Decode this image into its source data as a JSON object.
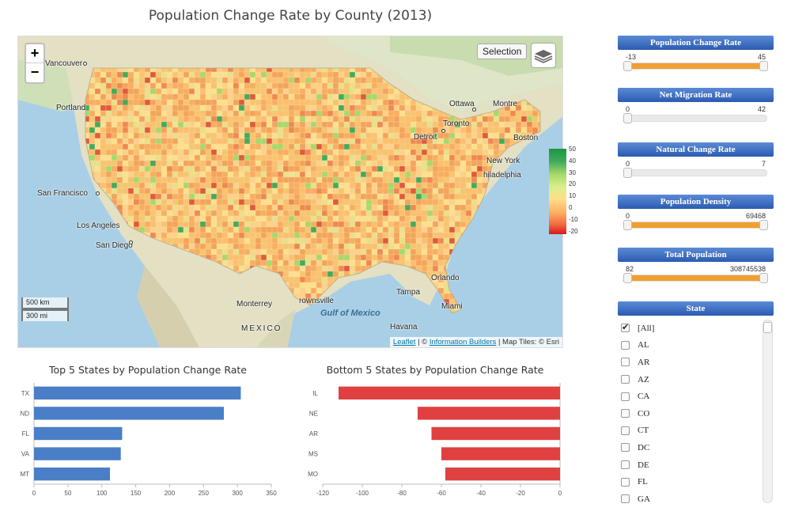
{
  "title": "Population Change Rate by County (2013)",
  "map": {
    "zoom_in": "+",
    "zoom_out": "−",
    "selection_label": "Selection",
    "layers_icon": "layers-icon",
    "scale_km": "500 km",
    "scale_mi": "300 mi",
    "attribution_leaflet": "Leaflet",
    "attribution_sep1": " | © ",
    "attribution_ib": "Information Builders",
    "attribution_tail": " | Map Tiles: © Esri",
    "labels": [
      {
        "name": "vancouver",
        "text": "Vancouver"
      },
      {
        "name": "portland",
        "text": "Portland"
      },
      {
        "name": "san-francisco",
        "text": "San Francisco"
      },
      {
        "name": "los-angeles",
        "text": "Los Angeles"
      },
      {
        "name": "san-diego",
        "text": "San Diego"
      },
      {
        "name": "ottawa",
        "text": "Ottawa"
      },
      {
        "name": "montreal",
        "text": "Montre"
      },
      {
        "name": "toronto",
        "text": "Toronto"
      },
      {
        "name": "detroit",
        "text": "Detroit"
      },
      {
        "name": "boston",
        "text": "Boston"
      },
      {
        "name": "new-york",
        "text": "New York"
      },
      {
        "name": "philadelphia",
        "text": "hiladelphia"
      },
      {
        "name": "orlando",
        "text": "Orlando"
      },
      {
        "name": "tampa",
        "text": "Tampa"
      },
      {
        "name": "miami",
        "text": "Miami"
      },
      {
        "name": "havana",
        "text": "Havana"
      },
      {
        "name": "monterrey",
        "text": "Monterrey"
      },
      {
        "name": "brownsville",
        "text": "rownsville"
      },
      {
        "name": "mexico",
        "text": "MEXICO"
      },
      {
        "name": "gulf",
        "text": "Gulf of Mexico"
      }
    ],
    "legend_ticks": [
      "50",
      "40",
      "30",
      "20",
      "10",
      "0",
      "-10",
      "-20"
    ],
    "colors": {
      "ocean": "#a9cfe6",
      "land": "#dfe6c8",
      "high": "#1a9641",
      "low": "#d7191c",
      "mid": "#fdae61"
    }
  },
  "top_chart": {
    "title": "Top 5 States by Population Change Rate",
    "color": "#4a7ec7"
  },
  "bottom_chart": {
    "title": "Bottom 5 States by Population Change Rate",
    "color": "#e04040"
  },
  "chart_data": [
    {
      "type": "bar",
      "orientation": "horizontal",
      "title": "Top 5 States by Population Change Rate",
      "categories": [
        "TX",
        "ND",
        "FL",
        "VA",
        "MT"
      ],
      "values": [
        305,
        280,
        130,
        128,
        112
      ],
      "xlim": [
        0,
        350
      ],
      "xticks": [
        "0",
        "50",
        "100",
        "150",
        "200",
        "250",
        "300",
        "350"
      ],
      "xtick_values": [
        0,
        50,
        100,
        150,
        200,
        250,
        300,
        350
      ],
      "color": "#4a7ec7"
    },
    {
      "type": "bar",
      "orientation": "horizontal",
      "title": "Bottom 5 States by Population Change Rate",
      "categories": [
        "IL",
        "NE",
        "AR",
        "MS",
        "MO"
      ],
      "values": [
        -112,
        -72,
        -65,
        -60,
        -58
      ],
      "xlim": [
        -120,
        0
      ],
      "xticks": [
        "-120",
        "-100",
        "-80",
        "-60",
        "-40",
        "-20",
        "0"
      ],
      "xtick_values": [
        -120,
        -100,
        -80,
        -60,
        -40,
        -20,
        0
      ],
      "color": "#e04040"
    }
  ],
  "filters": [
    {
      "name": "population-change-rate",
      "label": "Population Change Rate",
      "min": "-13",
      "max": "45",
      "filled": true
    },
    {
      "name": "net-migration-rate",
      "label": "Net Migration Rate",
      "min": "0",
      "max": "42",
      "filled": false
    },
    {
      "name": "natural-change-rate",
      "label": "Natural Change Rate",
      "min": "0",
      "max": "7",
      "filled": false
    },
    {
      "name": "population-density",
      "label": "Population Density",
      "min": "0",
      "max": "69468",
      "filled": true
    },
    {
      "name": "total-population",
      "label": "Total Population",
      "min": "82",
      "max": "308745538",
      "filled": true
    }
  ],
  "state_filter": {
    "label": "State",
    "items": [
      {
        "label": "[All]",
        "checked": true
      },
      {
        "label": "AL",
        "checked": false
      },
      {
        "label": "AR",
        "checked": false
      },
      {
        "label": "AZ",
        "checked": false
      },
      {
        "label": "CA",
        "checked": false
      },
      {
        "label": "CO",
        "checked": false
      },
      {
        "label": "CT",
        "checked": false
      },
      {
        "label": "DC",
        "checked": false
      },
      {
        "label": "DE",
        "checked": false
      },
      {
        "label": "FL",
        "checked": false
      },
      {
        "label": "GA",
        "checked": false
      }
    ]
  }
}
